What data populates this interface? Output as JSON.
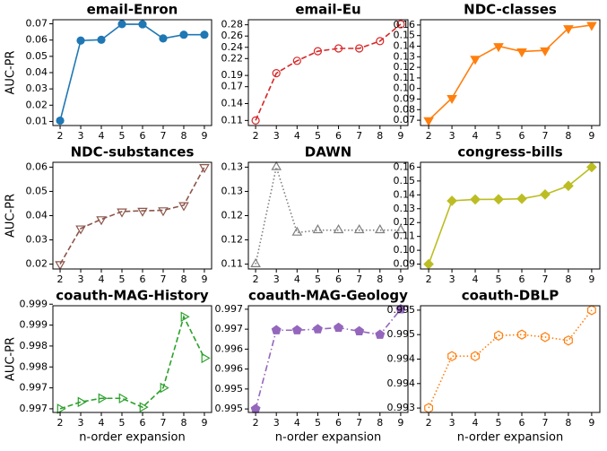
{
  "chart_data": [
    {
      "type": "line",
      "title": "email-Enron",
      "ylabel": "AUC-PR",
      "x": [
        2,
        3,
        4,
        5,
        6,
        7,
        8,
        9
      ],
      "xticks": [
        2,
        3,
        4,
        5,
        6,
        7,
        8,
        9
      ],
      "xlim": [
        1.65,
        9.35
      ],
      "ylim": [
        0.0075,
        0.0725
      ],
      "yticks": [
        0.01,
        0.02,
        0.03,
        0.04,
        0.05,
        0.06,
        0.07
      ],
      "series": [
        {
          "color": "#1f77b4",
          "linestyle": "solid",
          "marker": "circle",
          "filled": true,
          "values": [
            0.0105,
            0.0597,
            0.0602,
            0.0698,
            0.0697,
            0.061,
            0.0633,
            0.0633
          ]
        }
      ]
    },
    {
      "type": "line",
      "title": "email-Eu",
      "x": [
        2,
        3,
        4,
        5,
        6,
        7,
        8,
        9
      ],
      "xticks": [
        2,
        3,
        4,
        5,
        6,
        7,
        8,
        9
      ],
      "xlim": [
        1.65,
        9.35
      ],
      "ylim": [
        0.101,
        0.289
      ],
      "yticks": [
        0.11,
        0.14,
        0.17,
        0.19,
        0.22,
        0.24,
        0.26,
        0.28
      ],
      "series": [
        {
          "color": "#d62728",
          "linestyle": "dashed",
          "marker": "circle",
          "filled": false,
          "values": [
            0.11,
            0.194,
            0.216,
            0.233,
            0.238,
            0.238,
            0.251,
            0.281
          ]
        }
      ]
    },
    {
      "type": "line",
      "title": "NDC-classes",
      "x": [
        2,
        3,
        4,
        5,
        6,
        7,
        8,
        9
      ],
      "xticks": [
        2,
        3,
        4,
        5,
        6,
        7,
        8,
        9
      ],
      "xlim": [
        1.65,
        9.35
      ],
      "ylim": [
        0.065,
        0.165
      ],
      "yticks": [
        0.07,
        0.08,
        0.09,
        {
          "value": 0.1,
          "label": "0.10"
        },
        0.11,
        0.12,
        0.13,
        0.14,
        0.15,
        0.16
      ],
      "series": [
        {
          "color": "#ff7f0e",
          "linestyle": "solid",
          "marker": "triangle-down",
          "filled": true,
          "values": [
            0.07,
            0.091,
            0.128,
            0.14,
            0.135,
            0.136,
            0.157,
            0.16
          ]
        }
      ]
    },
    {
      "type": "line",
      "title": "NDC-substances",
      "ylabel": "AUC-PR",
      "x": [
        2,
        3,
        4,
        5,
        6,
        7,
        8,
        9
      ],
      "xticks": [
        2,
        3,
        4,
        5,
        6,
        7,
        8,
        9
      ],
      "xlim": [
        1.65,
        9.35
      ],
      "ylim": [
        0.018,
        0.062
      ],
      "yticks": [
        0.02,
        0.03,
        0.04,
        0.05,
        0.06
      ],
      "series": [
        {
          "color": "#8c564b",
          "linestyle": "dashed",
          "marker": "triangle-down",
          "filled": false,
          "values": [
            0.02,
            0.0347,
            0.0385,
            0.0417,
            0.042,
            0.0422,
            0.0443,
            0.06
          ]
        }
      ]
    },
    {
      "type": "line",
      "title": "DAWN",
      "x": [
        2,
        3,
        4,
        5,
        6,
        7,
        8,
        9
      ],
      "xticks": [
        2,
        3,
        4,
        5,
        6,
        7,
        8,
        9
      ],
      "xlim": [
        1.65,
        9.35
      ],
      "ylim": [
        0.109,
        0.131
      ],
      "yticks": [
        0.11,
        {
          "value": 0.115,
          "label": "0.12"
        },
        0.12,
        {
          "value": 0.125,
          "label": "0.13"
        },
        0.13
      ],
      "series": [
        {
          "color": "#7f7f7f",
          "linestyle": "dotted",
          "marker": "triangle-up",
          "filled": false,
          "values": [
            0.11,
            0.13,
            0.1165,
            0.117,
            0.117,
            0.117,
            0.117,
            0.117
          ]
        }
      ]
    },
    {
      "type": "line",
      "title": "congress-bills",
      "x": [
        2,
        3,
        4,
        5,
        6,
        7,
        8,
        9
      ],
      "xticks": [
        2,
        3,
        4,
        5,
        6,
        7,
        8,
        9
      ],
      "xlim": [
        1.65,
        9.35
      ],
      "ylim": [
        0.0865,
        0.1635
      ],
      "yticks": [
        0.09,
        {
          "value": 0.1,
          "label": "0.10"
        },
        0.11,
        0.12,
        0.13,
        0.14,
        0.15,
        0.16
      ],
      "series": [
        {
          "color": "#bcbd22",
          "linestyle": "solid",
          "marker": "diamond",
          "filled": true,
          "values": [
            0.09,
            0.1357,
            0.1367,
            0.1368,
            0.1372,
            0.1403,
            0.1465,
            0.16
          ]
        }
      ]
    },
    {
      "type": "line",
      "title": "coauth-MAG-History",
      "ylabel": "AUC-PR",
      "xlabel": "n-order expansion",
      "x": [
        2,
        3,
        4,
        5,
        6,
        7,
        8,
        9
      ],
      "xticks": [
        2,
        3,
        4,
        5,
        6,
        7,
        8,
        9
      ],
      "xlim": [
        1.65,
        9.35
      ],
      "ylim": [
        0.99693,
        0.99897
      ],
      "yticks": [
        0.997,
        {
          "value": 0.9974,
          "label": "0.997"
        },
        {
          "value": 0.9978,
          "label": "0.998"
        },
        {
          "value": 0.9982,
          "label": "0.998"
        },
        {
          "value": 0.9986,
          "label": "0.999"
        },
        0.999
      ],
      "series": [
        {
          "color": "#2ca02c",
          "linestyle": "dashed",
          "marker": "triangle-right",
          "filled": false,
          "values": [
            0.997,
            0.99713,
            0.9972,
            0.9972,
            0.99703,
            0.9974,
            0.99876,
            0.99797
          ]
        }
      ]
    },
    {
      "type": "line",
      "title": "coauth-MAG-Geology",
      "xlabel": "n-order expansion",
      "x": [
        2,
        3,
        4,
        5,
        6,
        7,
        8,
        9
      ],
      "xticks": [
        2,
        3,
        4,
        5,
        6,
        7,
        8,
        9
      ],
      "xlim": [
        1.65,
        9.35
      ],
      "ylim": [
        0.99493,
        0.99707
      ],
      "yticks": [
        0.995,
        {
          "value": 0.9954,
          "label": "0.995"
        },
        {
          "value": 0.9958,
          "label": "0.996"
        },
        {
          "value": 0.9962,
          "label": "0.996"
        },
        {
          "value": 0.9966,
          "label": "0.997"
        },
        0.997
      ],
      "series": [
        {
          "color": "#9467bd",
          "linestyle": "dashdot",
          "marker": "pentagon",
          "filled": true,
          "values": [
            0.995,
            0.99658,
            0.99658,
            0.9966,
            0.99663,
            0.99656,
            0.99649,
            0.997
          ]
        }
      ]
    },
    {
      "type": "line",
      "title": "coauth-DBLP",
      "xlabel": "n-order expansion",
      "x": [
        2,
        3,
        4,
        5,
        6,
        7,
        8,
        9
      ],
      "xticks": [
        2,
        3,
        4,
        5,
        6,
        7,
        8,
        9
      ],
      "xlim": [
        1.65,
        9.35
      ],
      "ylim": [
        0.99291,
        0.99509
      ],
      "yticks": [
        0.993,
        {
          "value": 0.9935,
          "label": "0.994"
        },
        0.994,
        {
          "value": 0.9945,
          "label": "0.995"
        },
        0.995
      ],
      "series": [
        {
          "color": "#ff7f0e",
          "linestyle": "dotted",
          "marker": "hexagon",
          "filled": false,
          "values": [
            0.993,
            0.99406,
            0.99406,
            0.99448,
            0.9945,
            0.99445,
            0.99438,
            0.995
          ]
        }
      ]
    }
  ]
}
